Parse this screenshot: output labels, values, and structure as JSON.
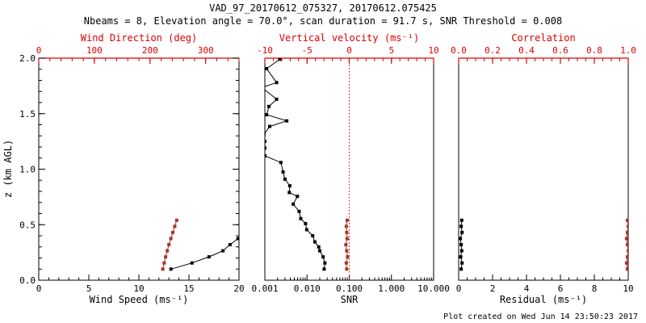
{
  "title": "VAD_97_20170612_075327, 20170612.075425",
  "subtitle": "Nbeams = 8, Elevation angle = 70.0°, scan duration = 91.7 s, SNR Threshold = 0.008",
  "footer": "Plot created on Wed Jun 14 23:50:23 2017",
  "colors": {
    "axis_red": "#dd0000",
    "data_red": "#a83428",
    "black": "#000000",
    "background": "#ffffff"
  },
  "chart_data": [
    {
      "name": "wind-profile",
      "type": "line",
      "x_bottom": {
        "label": "Wind Speed (ms⁻¹)",
        "range": [
          0,
          20
        ],
        "tick_values": [
          0,
          5,
          10,
          15,
          20
        ],
        "tick_labels": [
          "0",
          "5",
          "10",
          "15",
          "20"
        ],
        "minor_step": 1
      },
      "x_top": {
        "label": "Wind Direction (deg)",
        "range": [
          0,
          360
        ],
        "tick_values": [
          0,
          100,
          200,
          300
        ],
        "tick_labels": [
          "0",
          "100",
          "200",
          "300"
        ],
        "minor_step": 20
      },
      "y_axis": {
        "label": "z (km AGL)",
        "range": [
          0,
          2
        ],
        "tick_values": [
          0,
          0.5,
          1,
          1.5,
          2
        ],
        "tick_labels": [
          "0.0",
          "0.5",
          "1.0",
          "1.5",
          "2.0"
        ],
        "minor_step": 0.1,
        "show_labels": true
      },
      "series": [
        {
          "name": "wind-speed",
          "x_axis": "bottom",
          "color": "black",
          "marker": "square",
          "z": [
            0.1,
            0.155,
            0.21,
            0.265,
            0.32,
            0.375,
            0.43
          ],
          "values": [
            13.2,
            15.3,
            17.0,
            18.4,
            19.1,
            19.9,
            21.8
          ]
        },
        {
          "name": "wind-direction",
          "x_axis": "top",
          "color": "red",
          "marker": "square",
          "z": [
            0.1,
            0.155,
            0.21,
            0.265,
            0.32,
            0.375,
            0.43,
            0.485,
            0.54
          ],
          "values": [
            223,
            225.5,
            228,
            231,
            234,
            237.5,
            241,
            244.5,
            248
          ]
        }
      ]
    },
    {
      "name": "snr-profile",
      "type": "line",
      "x_bottom": {
        "label": "SNR",
        "log": true,
        "range": [
          0.001,
          10
        ],
        "tick_values": [
          0.001,
          0.01,
          0.1,
          1,
          10
        ],
        "tick_labels": [
          "0.001",
          "0.010",
          "0.100",
          "1.000",
          "10.000"
        ]
      },
      "x_top": {
        "label": "Vertical velocity (ms⁻¹)",
        "range": [
          -10,
          10
        ],
        "tick_values": [
          -10,
          -5,
          0,
          5,
          10
        ],
        "tick_labels": [
          "-10",
          "-5",
          "0",
          "5",
          "10"
        ],
        "minor_step": 1,
        "zero_line": true
      },
      "y_axis": {
        "range": [
          0,
          2
        ],
        "minor_step": 0.1,
        "show_labels": false
      },
      "series": [
        {
          "name": "snr",
          "x_axis": "bottom",
          "color": "black",
          "marker": "square",
          "z": [
            0.1,
            0.155,
            0.21,
            0.265,
            0.3,
            0.345,
            0.4,
            0.455,
            0.51,
            0.555,
            0.62,
            0.685,
            0.755,
            0.79,
            0.85,
            0.91,
            0.975,
            1.06,
            1.12,
            1.19,
            1.25,
            1.31,
            1.385,
            1.435,
            1.49,
            1.565,
            1.63,
            1.735,
            1.78,
            1.905,
            1.99
          ],
          "values": [
            0.0254,
            0.0265,
            0.024,
            0.02,
            0.0189,
            0.0153,
            0.0136,
            0.0098,
            0.0092,
            0.0071,
            0.0065,
            0.0047,
            0.0059,
            0.0038,
            0.0039,
            0.003,
            0.0027,
            0.0024,
            0.001,
            0.001,
            0.001,
            0.00095,
            0.0013,
            0.0033,
            0.0011,
            0.00125,
            0.0019,
            0.00085,
            0.0019,
            0.0011,
            0.00225
          ]
        },
        {
          "name": "vertical-velocity",
          "x_axis": "top",
          "color": "red",
          "marker": "square",
          "z": [
            0.1,
            0.155,
            0.21,
            0.265,
            0.32,
            0.375,
            0.43,
            0.485,
            0.54
          ],
          "values": [
            -0.3,
            -0.35,
            -0.2,
            -0.3,
            -0.4,
            -0.25,
            -0.3,
            -0.35,
            -0.25
          ]
        }
      ]
    },
    {
      "name": "residual-correlation",
      "type": "line",
      "x_bottom": {
        "label": "Residual (ms⁻¹)",
        "range": [
          0,
          10
        ],
        "tick_values": [
          0,
          2,
          4,
          6,
          8,
          10
        ],
        "tick_labels": [
          "0",
          "2",
          "4",
          "6",
          "8",
          "10"
        ],
        "minor_step": 0.5
      },
      "x_top": {
        "label": "Correlation",
        "range": [
          0,
          1
        ],
        "tick_values": [
          0,
          0.2,
          0.4,
          0.6,
          0.8,
          1.0
        ],
        "tick_labels": [
          "0.0",
          "0.2",
          "0.4",
          "0.6",
          "0.8",
          "1.0"
        ],
        "minor_step": 0.05
      },
      "y_axis": {
        "range": [
          0,
          2
        ],
        "minor_step": 0.1,
        "show_labels": false
      },
      "series": [
        {
          "name": "residual",
          "x_axis": "bottom",
          "color": "black",
          "marker": "square",
          "z": [
            0.1,
            0.155,
            0.21,
            0.265,
            0.32,
            0.375,
            0.43,
            0.485,
            0.54
          ],
          "values": [
            0.15,
            0.2,
            0.12,
            0.18,
            0.15,
            0.1,
            0.2,
            0.15,
            0.18
          ]
        },
        {
          "name": "correlation",
          "x_axis": "top",
          "color": "red",
          "marker": "square",
          "z": [
            0.1,
            0.155,
            0.21,
            0.265,
            0.32,
            0.375,
            0.43,
            0.485,
            0.54
          ],
          "values": [
            0.995,
            0.99,
            0.995,
            1.0,
            0.995,
            0.99,
            0.995,
            1.0,
            0.995
          ]
        }
      ]
    }
  ]
}
